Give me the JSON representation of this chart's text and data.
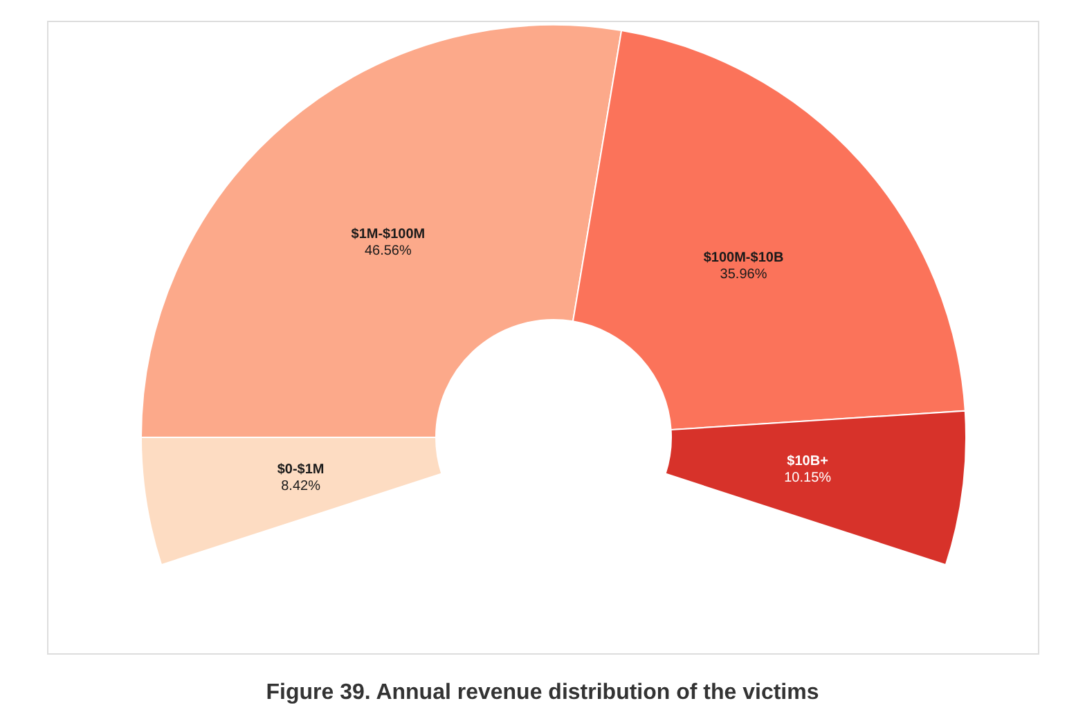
{
  "chart_data": {
    "type": "donut",
    "title": "Figure 39. Annual revenue distribution of the victims",
    "categories": [
      "$0-$1M",
      "$1M-$100M",
      "$100M-$10B",
      "$10B+"
    ],
    "values": [
      8.42,
      46.56,
      35.96,
      10.15
    ],
    "value_labels": [
      "8.42%",
      "46.56%",
      "35.96%",
      "10.15%"
    ],
    "colors": [
      "#fddcc2",
      "#fca98a",
      "#fb735a",
      "#d7322a"
    ],
    "legend": false
  }
}
